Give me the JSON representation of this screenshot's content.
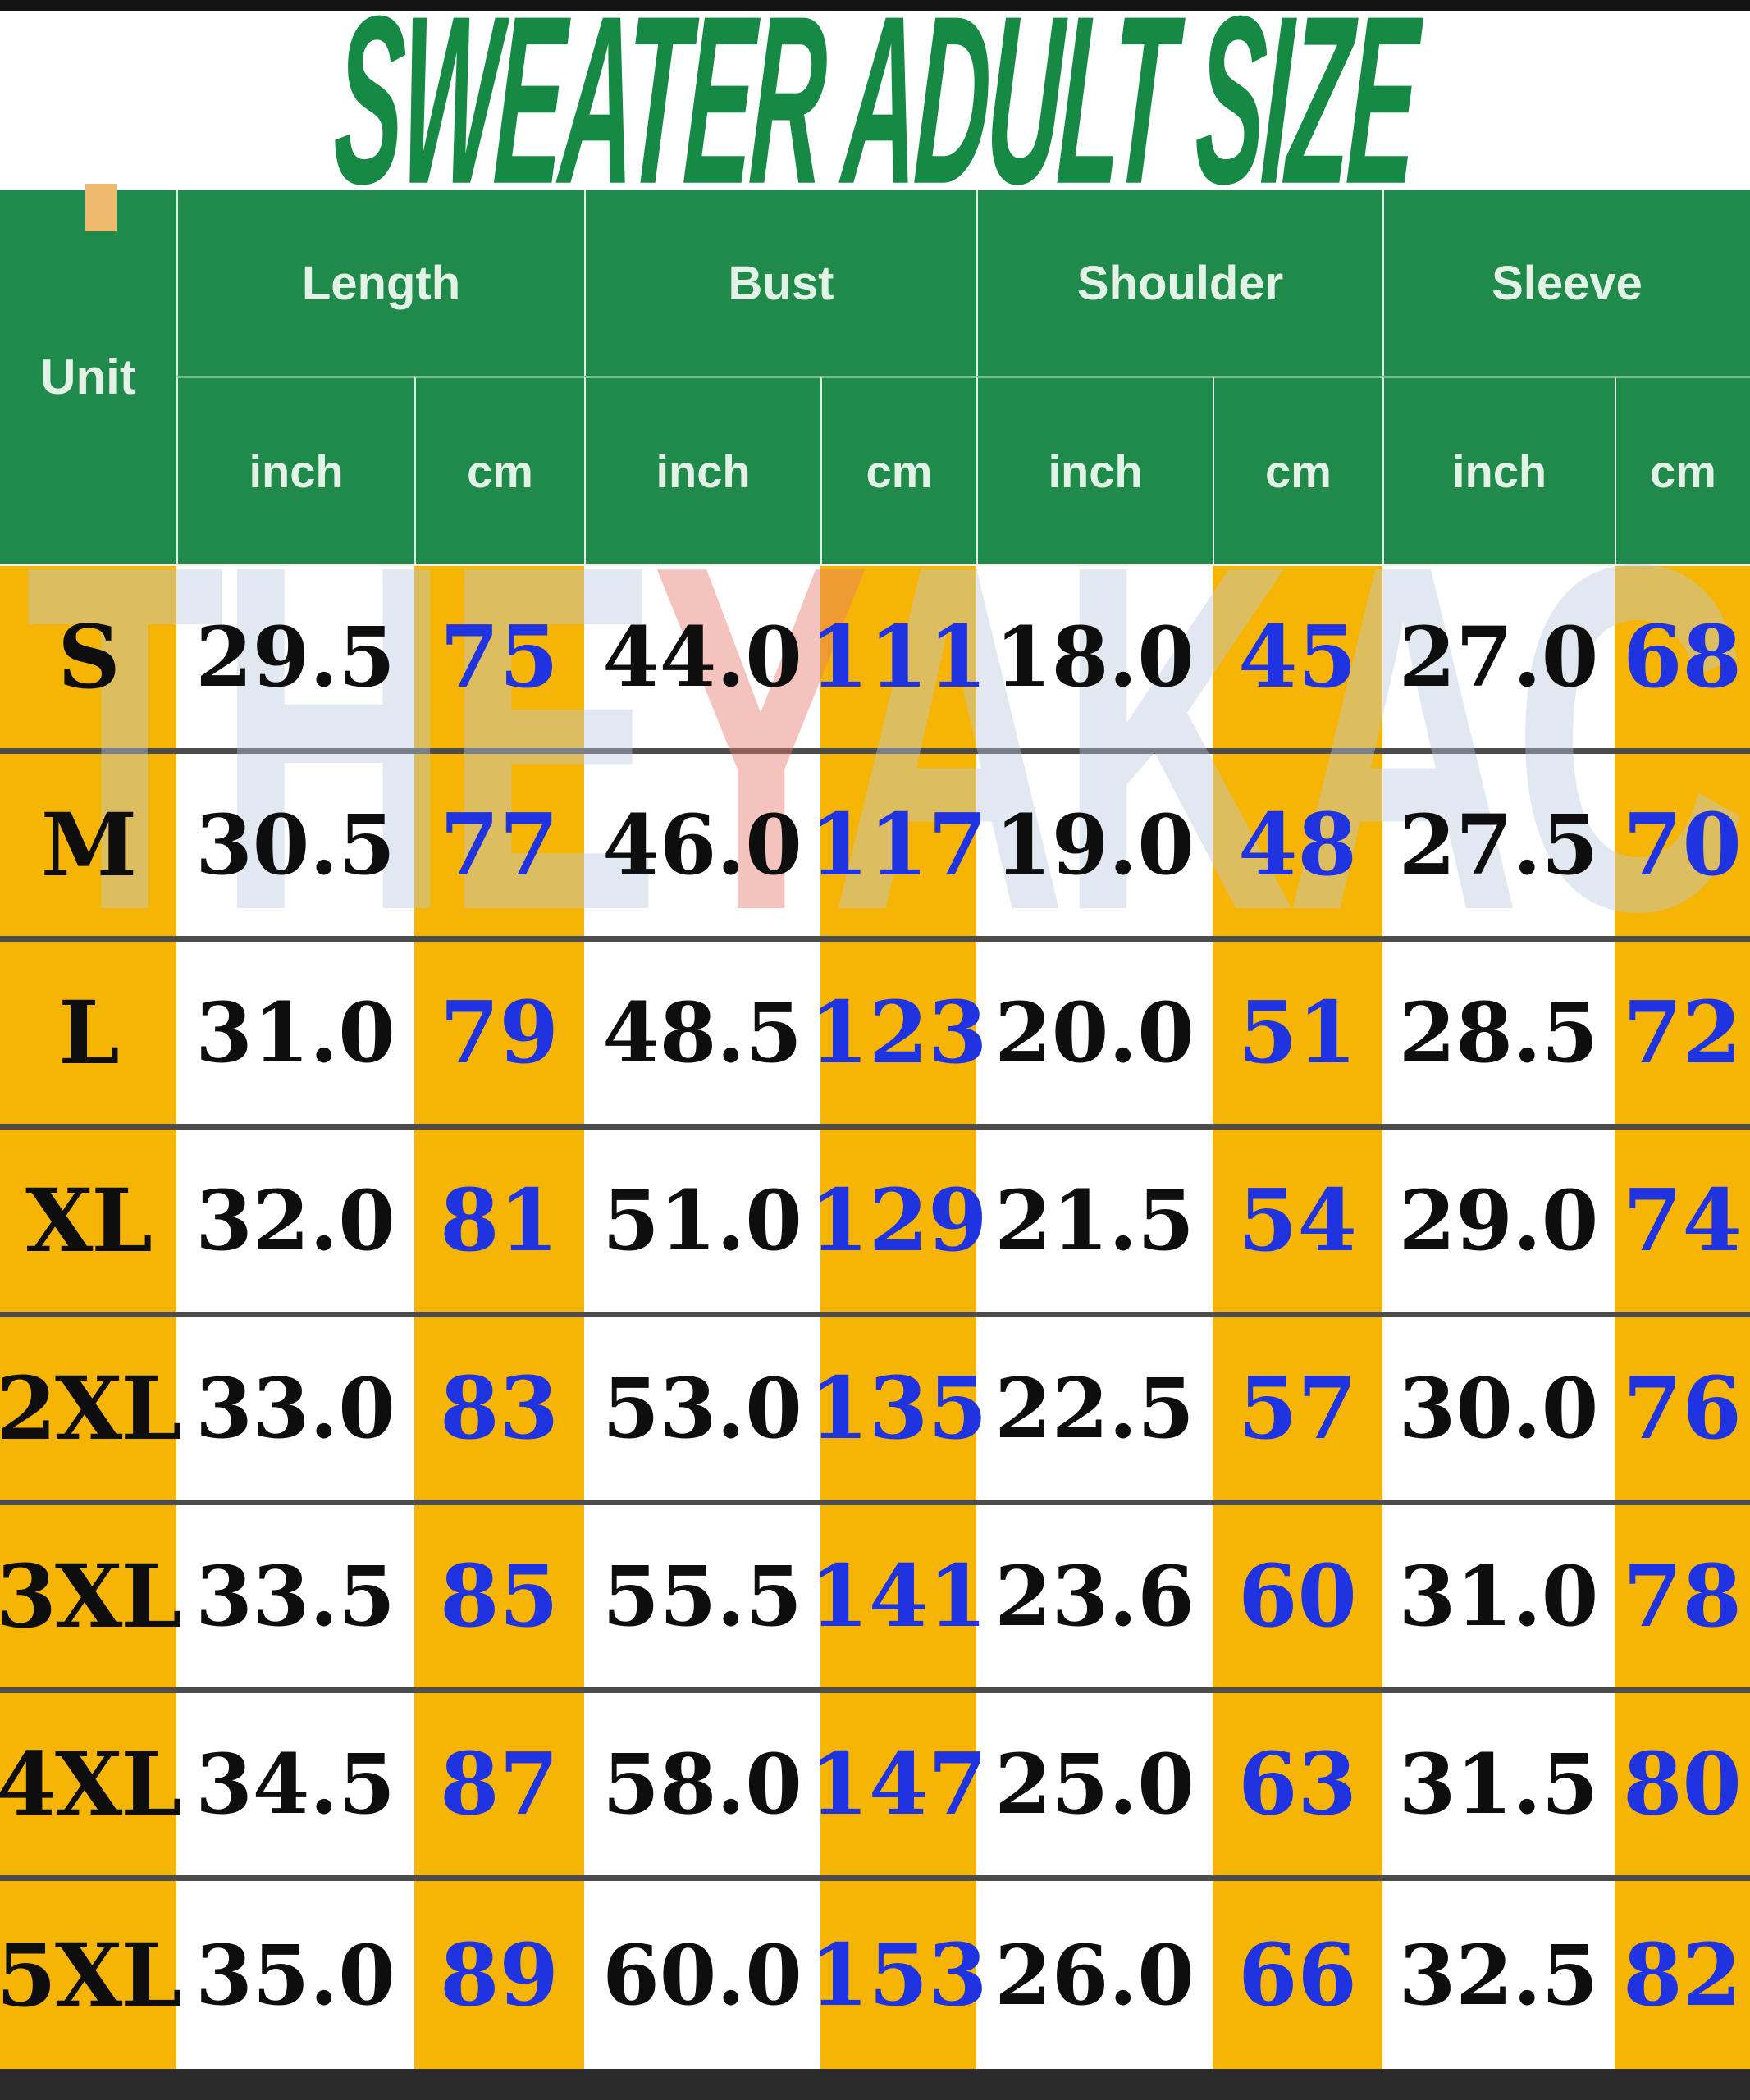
{
  "title": "SWEATER ADULT SIZE",
  "header": {
    "unit_label": "Unit",
    "groups": [
      {
        "label": "Length"
      },
      {
        "label": "Bust"
      },
      {
        "label": "Shoulder"
      },
      {
        "label": "Sleeve"
      }
    ],
    "sub_columns": [
      "inch",
      "cm"
    ]
  },
  "rows": [
    {
      "size": "S",
      "values": [
        "29.5",
        "75",
        "44.0",
        "111",
        "18.0",
        "45",
        "27.0",
        "68"
      ]
    },
    {
      "size": "M",
      "values": [
        "30.5",
        "77",
        "46.0",
        "117",
        "19.0",
        "48",
        "27.5",
        "70"
      ]
    },
    {
      "size": "L",
      "values": [
        "31.0",
        "79",
        "48.5",
        "123",
        "20.0",
        "51",
        "28.5",
        "72"
      ]
    },
    {
      "size": "XL",
      "values": [
        "32.0",
        "81",
        "51.0",
        "129",
        "21.5",
        "54",
        "29.0",
        "74"
      ]
    },
    {
      "size": "2XL",
      "values": [
        "33.0",
        "83",
        "53.0",
        "135",
        "22.5",
        "57",
        "30.0",
        "76"
      ]
    },
    {
      "size": "3XL",
      "values": [
        "33.5",
        "85",
        "55.5",
        "141",
        "23.6",
        "60",
        "31.0",
        "78"
      ]
    },
    {
      "size": "4XL",
      "values": [
        "34.5",
        "87",
        "58.0",
        "147",
        "25.0",
        "63",
        "31.5",
        "80"
      ]
    },
    {
      "size": "5XL",
      "values": [
        "35.0",
        "89",
        "60.0",
        "153",
        "26.0",
        "66",
        "32.5",
        "82"
      ]
    }
  ],
  "watermark": {
    "text_left": "THE",
    "text_mid": "Y",
    "text_right": "AKACOM"
  },
  "colors": {
    "header_green": "#1f8a4a",
    "title_green": "#168945",
    "stripe_yellow": "#f6b505",
    "cm_blue": "#2033e0",
    "text_black": "#0e0e0e"
  },
  "chart_data": {
    "type": "table",
    "title": "SWEATER ADULT SIZE",
    "columns": [
      "Unit",
      "Length inch",
      "Length cm",
      "Bust inch",
      "Bust cm",
      "Shoulder inch",
      "Shoulder cm",
      "Sleeve inch",
      "Sleeve cm"
    ],
    "rows": [
      [
        "S",
        29.5,
        75,
        44.0,
        111,
        18.0,
        45,
        27.0,
        68
      ],
      [
        "M",
        30.5,
        77,
        46.0,
        117,
        19.0,
        48,
        27.5,
        70
      ],
      [
        "L",
        31.0,
        79,
        48.5,
        123,
        20.0,
        51,
        28.5,
        72
      ],
      [
        "XL",
        32.0,
        81,
        51.0,
        129,
        21.5,
        54,
        29.0,
        74
      ],
      [
        "2XL",
        33.0,
        83,
        53.0,
        135,
        22.5,
        57,
        30.0,
        76
      ],
      [
        "3XL",
        33.5,
        85,
        55.5,
        141,
        23.6,
        60,
        31.0,
        78
      ],
      [
        "4XL",
        34.5,
        87,
        58.0,
        147,
        25.0,
        63,
        31.5,
        80
      ],
      [
        "5XL",
        35.0,
        89,
        60.0,
        153,
        26.0,
        66,
        32.5,
        82
      ]
    ]
  }
}
